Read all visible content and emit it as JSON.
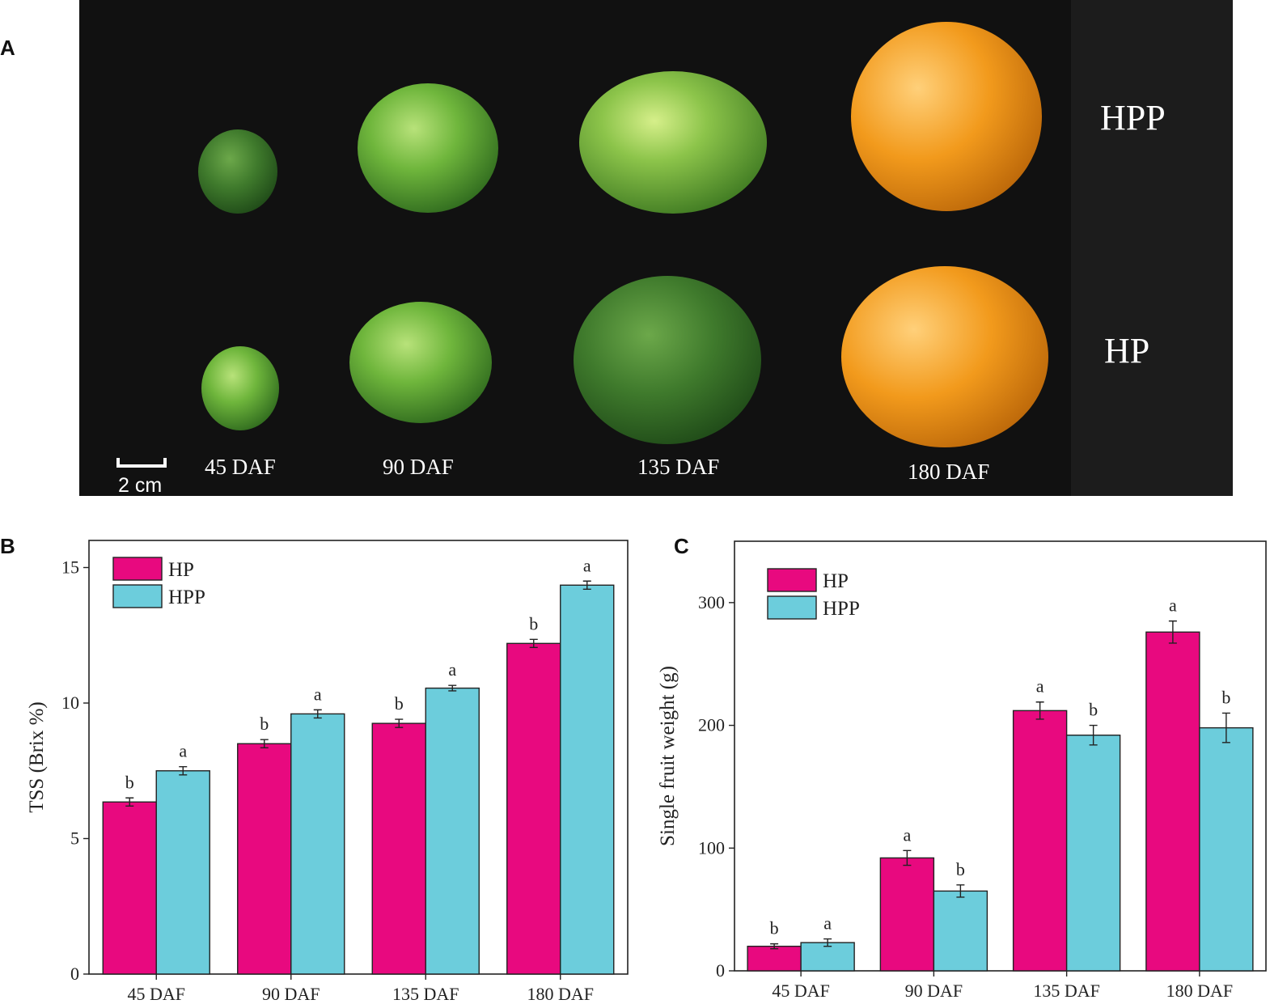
{
  "panels": {
    "a": "A",
    "b": "B",
    "c": "C"
  },
  "photo": {
    "row_labels": {
      "top": "HPP",
      "bottom": "HP"
    },
    "stages": [
      "45 DAF",
      "90 DAF",
      "135 DAF",
      "180 DAF"
    ],
    "scale_bar": "2 cm",
    "colors": {
      "green_light": "#6fb63c",
      "green_dark": "#3f8a2c",
      "orange": "#f29a1c",
      "background": "#111111"
    }
  },
  "chart_data": [
    {
      "type": "bar",
      "title": "",
      "xlabel": "",
      "ylabel": "TSS (Brix %)",
      "ylim": [
        0,
        16
      ],
      "yticks": [
        0,
        5,
        10,
        15
      ],
      "categories": [
        "45 DAF",
        "90 DAF",
        "135 DAF",
        "180 DAF"
      ],
      "series": [
        {
          "name": "HP",
          "color": "#e8097f",
          "values": [
            6.35,
            8.5,
            9.25,
            12.2
          ],
          "errors": [
            0.15,
            0.15,
            0.15,
            0.15
          ],
          "letters": [
            "b",
            "b",
            "b",
            "b"
          ]
        },
        {
          "name": "HPP",
          "color": "#6ccddc",
          "values": [
            7.5,
            9.6,
            10.55,
            14.35
          ],
          "errors": [
            0.15,
            0.15,
            0.1,
            0.15
          ],
          "letters": [
            "a",
            "a",
            "a",
            "a"
          ]
        }
      ],
      "legend": "top-left",
      "grid": false
    },
    {
      "type": "bar",
      "title": "",
      "xlabel": "",
      "ylabel": "Single fruit weight (g)",
      "ylim": [
        0,
        350
      ],
      "yticks": [
        0,
        100,
        200,
        300
      ],
      "categories": [
        "45 DAF",
        "90 DAF",
        "135 DAF",
        "180 DAF"
      ],
      "series": [
        {
          "name": "HP",
          "color": "#e8097f",
          "values": [
            20,
            92,
            212,
            276
          ],
          "errors": [
            2,
            6,
            7,
            9
          ],
          "letters": [
            "b",
            "a",
            "a",
            "a"
          ]
        },
        {
          "name": "HPP",
          "color": "#6ccddc",
          "values": [
            23,
            65,
            192,
            198
          ],
          "errors": [
            3,
            5,
            8,
            12
          ],
          "letters": [
            "a",
            "b",
            "b",
            "b"
          ]
        }
      ],
      "legend": "top-left",
      "grid": false
    }
  ]
}
